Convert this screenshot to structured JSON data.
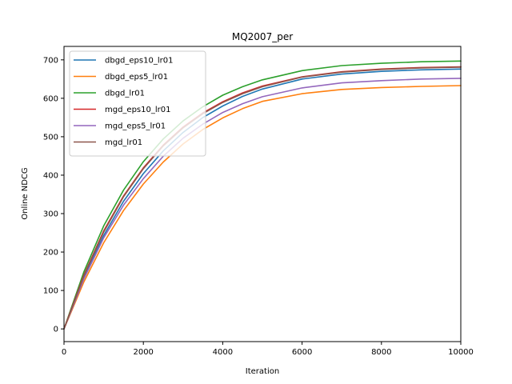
{
  "chart_data": {
    "type": "line",
    "title": "MQ2007_per",
    "xlabel": "Iteration",
    "ylabel": "Online NDCG",
    "xlim": [
      0,
      10000
    ],
    "ylim": [
      -33,
      735
    ],
    "xticks": [
      0,
      2000,
      4000,
      6000,
      8000,
      10000
    ],
    "yticks": [
      0,
      100,
      200,
      300,
      400,
      500,
      600,
      700
    ],
    "grid": false,
    "legend_position": "top-left",
    "series": [
      {
        "name": "dbgd_eps10_lr01",
        "color": "#1f77b4",
        "x": [
          0,
          500,
          1000,
          1500,
          2000,
          2500,
          3000,
          3500,
          4000,
          4500,
          5000,
          6000,
          7000,
          8000,
          9000,
          10000
        ],
        "values": [
          0,
          133,
          243,
          332,
          404,
          463,
          511,
          550,
          580,
          605,
          624,
          650,
          663,
          670,
          674,
          676
        ]
      },
      {
        "name": "dbgd_eps5_lr01",
        "color": "#ff7f0e",
        "x": [
          0,
          500,
          1000,
          1500,
          2000,
          2500,
          3000,
          3500,
          4000,
          4500,
          5000,
          6000,
          7000,
          8000,
          9000,
          10000
        ],
        "values": [
          0,
          122,
          224,
          308,
          377,
          434,
          481,
          519,
          549,
          573,
          592,
          612,
          623,
          628,
          631,
          633
        ]
      },
      {
        "name": "dbgd_lr01",
        "color": "#2ca02c",
        "x": [
          0,
          500,
          1000,
          1500,
          2000,
          2500,
          3000,
          3500,
          4000,
          4500,
          5000,
          6000,
          7000,
          8000,
          9000,
          10000
        ],
        "values": [
          0,
          148,
          268,
          361,
          435,
          494,
          541,
          578,
          608,
          630,
          648,
          672,
          685,
          691,
          695,
          697
        ]
      },
      {
        "name": "mgd_eps10_lr01",
        "color": "#d62728",
        "x": [
          0,
          500,
          1000,
          1500,
          2000,
          2500,
          3000,
          3500,
          4000,
          4500,
          5000,
          6000,
          7000,
          8000,
          9000,
          10000
        ],
        "values": [
          0,
          140,
          255,
          346,
          419,
          478,
          525,
          562,
          591,
          614,
          632,
          656,
          669,
          676,
          680,
          682
        ]
      },
      {
        "name": "mgd_eps5_lr01",
        "color": "#9467bd",
        "x": [
          0,
          500,
          1000,
          1500,
          2000,
          2500,
          3000,
          3500,
          4000,
          4500,
          5000,
          6000,
          7000,
          8000,
          9000,
          10000
        ],
        "values": [
          0,
          130,
          237,
          322,
          391,
          449,
          496,
          533,
          563,
          586,
          604,
          627,
          640,
          646,
          650,
          652
        ]
      },
      {
        "name": "mgd_lr01",
        "color": "#8c564b",
        "x": [
          0,
          500,
          1000,
          1500,
          2000,
          2500,
          3000,
          3500,
          4000,
          4500,
          5000,
          6000,
          7000,
          8000,
          9000,
          10000
        ],
        "values": [
          0,
          138,
          252,
          344,
          417,
          476,
          523,
          560,
          589,
          612,
          630,
          655,
          668,
          675,
          679,
          681
        ]
      }
    ]
  }
}
